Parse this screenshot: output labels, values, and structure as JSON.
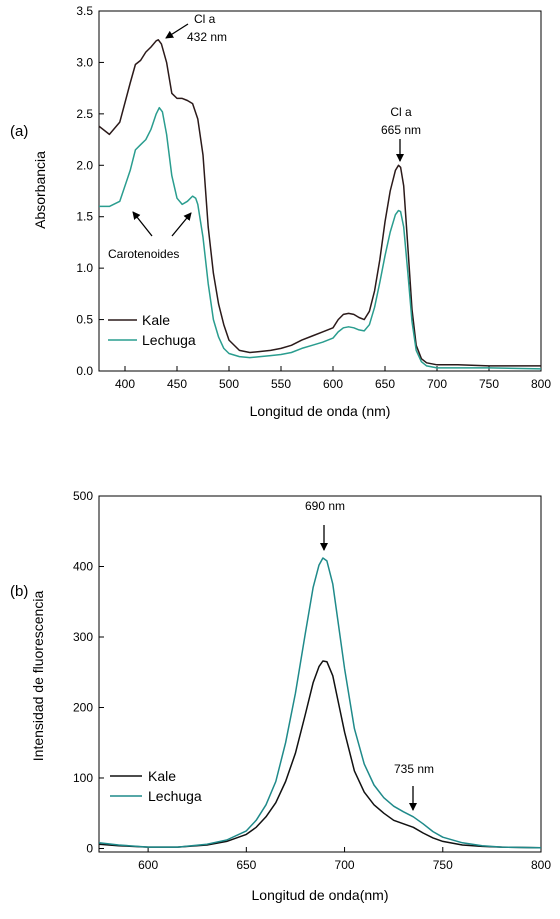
{
  "chart_data": [
    {
      "type": "line",
      "panel_label": "(a)",
      "xlabel": "Longitud de onda (nm)",
      "ylabel": "Absorbancia",
      "xlim": [
        375,
        800
      ],
      "ylim": [
        0,
        3.5
      ],
      "xticks": [
        400,
        450,
        500,
        550,
        600,
        650,
        700,
        750,
        800
      ],
      "yticks": [
        0.0,
        0.5,
        1.0,
        1.5,
        2.0,
        2.5,
        3.0,
        3.5
      ],
      "xtick_labels": [
        "400",
        "450",
        "500",
        "550",
        "600",
        "650",
        "700",
        "750",
        "800"
      ],
      "ytick_labels": [
        "0.0",
        "0.5",
        "1.0",
        "1.5",
        "2.0",
        "2.5",
        "3.0",
        "3.5"
      ],
      "grid": false,
      "legend_position": "bottom-left",
      "series": [
        {
          "name": "Kale",
          "color": "#2b1a1a",
          "x": [
            375,
            385,
            395,
            405,
            410,
            415,
            420,
            425,
            430,
            432,
            435,
            440,
            445,
            450,
            455,
            460,
            465,
            470,
            475,
            480,
            485,
            490,
            495,
            500,
            510,
            520,
            530,
            540,
            550,
            560,
            570,
            580,
            590,
            600,
            605,
            610,
            615,
            620,
            625,
            630,
            635,
            640,
            645,
            650,
            655,
            660,
            663,
            665,
            668,
            672,
            676,
            680,
            685,
            690,
            700,
            720,
            750,
            800
          ],
          "y": [
            2.38,
            2.3,
            2.42,
            2.8,
            2.98,
            3.02,
            3.1,
            3.15,
            3.21,
            3.22,
            3.18,
            3.0,
            2.7,
            2.65,
            2.65,
            2.63,
            2.6,
            2.45,
            2.1,
            1.4,
            0.95,
            0.65,
            0.45,
            0.3,
            0.2,
            0.18,
            0.19,
            0.2,
            0.22,
            0.25,
            0.3,
            0.34,
            0.38,
            0.42,
            0.5,
            0.55,
            0.56,
            0.55,
            0.52,
            0.5,
            0.58,
            0.78,
            1.08,
            1.45,
            1.75,
            1.95,
            2.0,
            1.98,
            1.8,
            1.2,
            0.6,
            0.25,
            0.12,
            0.08,
            0.06,
            0.06,
            0.05,
            0.05
          ]
        },
        {
          "name": "Lechuga",
          "color": "#2a9d8f",
          "x": [
            375,
            385,
            395,
            405,
            410,
            415,
            420,
            425,
            430,
            433,
            436,
            440,
            445,
            450,
            455,
            460,
            465,
            468,
            470,
            475,
            480,
            485,
            490,
            495,
            500,
            510,
            520,
            530,
            540,
            550,
            560,
            570,
            580,
            590,
            600,
            605,
            610,
            615,
            620,
            625,
            630,
            635,
            640,
            645,
            650,
            655,
            660,
            663,
            665,
            668,
            672,
            676,
            680,
            685,
            690,
            700,
            720,
            750,
            800
          ],
          "y": [
            1.6,
            1.6,
            1.65,
            1.95,
            2.15,
            2.2,
            2.25,
            2.35,
            2.5,
            2.56,
            2.52,
            2.3,
            1.9,
            1.68,
            1.62,
            1.65,
            1.7,
            1.68,
            1.62,
            1.3,
            0.85,
            0.5,
            0.33,
            0.22,
            0.17,
            0.14,
            0.13,
            0.14,
            0.15,
            0.16,
            0.18,
            0.22,
            0.25,
            0.28,
            0.32,
            0.38,
            0.42,
            0.43,
            0.42,
            0.4,
            0.39,
            0.45,
            0.62,
            0.86,
            1.12,
            1.35,
            1.52,
            1.56,
            1.55,
            1.4,
            0.95,
            0.48,
            0.2,
            0.09,
            0.05,
            0.03,
            0.03,
            0.03,
            0.02
          ]
        }
      ],
      "annotations": [
        {
          "text": "Cl a",
          "text2": "432 nm"
        },
        {
          "text": "Cl a",
          "text2": "665 nm"
        },
        {
          "text": "Carotenoides"
        }
      ]
    },
    {
      "type": "line",
      "panel_label": "(b)",
      "xlabel": "Longitud de onda(nm)",
      "ylabel": "Intensidad de fluorescencia",
      "xlim": [
        575,
        800
      ],
      "ylim": [
        -5,
        500
      ],
      "xticks": [
        600,
        650,
        700,
        750,
        800
      ],
      "yticks": [
        0,
        100,
        200,
        300,
        400,
        500
      ],
      "xtick_labels": [
        "600",
        "650",
        "700",
        "750",
        "800"
      ],
      "ytick_labels": [
        "0",
        "100",
        "200",
        "300",
        "400",
        "500"
      ],
      "grid": false,
      "legend_position": "bottom-left",
      "series": [
        {
          "name": "Kale",
          "color": "#111111",
          "x": [
            575,
            585,
            600,
            615,
            630,
            640,
            650,
            655,
            660,
            665,
            670,
            675,
            680,
            684,
            687,
            689,
            691,
            694,
            697,
            700,
            705,
            710,
            715,
            720,
            725,
            730,
            735,
            740,
            745,
            750,
            760,
            770,
            780,
            800
          ],
          "y": [
            6,
            4,
            2,
            2,
            5,
            10,
            20,
            30,
            45,
            65,
            95,
            135,
            190,
            235,
            258,
            266,
            265,
            245,
            205,
            165,
            110,
            80,
            62,
            50,
            40,
            35,
            30,
            22,
            15,
            10,
            5,
            3,
            2,
            1
          ]
        },
        {
          "name": "Lechuga",
          "color": "#1f8a8a",
          "x": [
            575,
            585,
            600,
            615,
            630,
            640,
            650,
            655,
            660,
            665,
            670,
            675,
            680,
            684,
            687,
            689,
            691,
            694,
            697,
            700,
            705,
            710,
            715,
            720,
            725,
            730,
            735,
            740,
            745,
            750,
            760,
            770,
            780,
            800
          ],
          "y": [
            8,
            5,
            2,
            2,
            6,
            12,
            25,
            40,
            62,
            95,
            150,
            220,
            305,
            370,
            402,
            412,
            408,
            375,
            315,
            255,
            170,
            120,
            90,
            72,
            60,
            52,
            45,
            35,
            24,
            16,
            8,
            4,
            2,
            1
          ]
        }
      ],
      "annotations": [
        {
          "text": "690 nm"
        },
        {
          "text": "735 nm"
        }
      ]
    }
  ]
}
